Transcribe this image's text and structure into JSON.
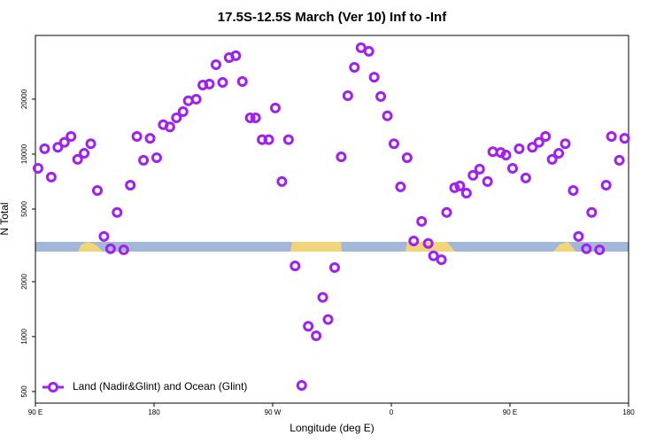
{
  "chart_data": {
    "type": "scatter",
    "title": "17.5S-12.5S March (Ver 10)   Inf to -Inf",
    "x_label": "Longitude (deg E)",
    "y_label": "N Total",
    "xlim": [
      90,
      540
    ],
    "xticks": [
      {
        "value": 90,
        "label": "90 E"
      },
      180,
      {
        "value": 270,
        "label": "90 W"
      },
      {
        "value": 360,
        "label": "0"
      },
      {
        "value": 450,
        "label": "90 E"
      },
      {
        "value": 540,
        "label": "180"
      }
    ],
    "ylim": [
      432,
      44700
    ],
    "y_scale": "log",
    "yticks": [
      500,
      1000,
      2000,
      5000,
      10000,
      20000
    ],
    "legend": "bottomleft",
    "series": [
      {
        "name": "Land (Nadir&Glint) and Ocean (Glint)",
        "color": "#a020f0",
        "x": [
          92,
          97,
          102,
          107,
          112,
          117,
          122,
          127,
          132,
          137,
          142,
          147,
          152,
          157,
          162,
          167,
          172,
          177,
          182,
          187,
          192,
          197,
          202,
          206,
          212,
          217,
          222,
          227,
          232,
          237,
          242,
          247,
          253,
          257,
          262,
          267,
          272,
          277,
          282,
          287,
          292,
          297,
          303,
          308,
          312,
          317,
          322,
          327,
          332,
          337,
          343,
          347,
          352,
          357,
          362,
          367,
          372,
          377,
          383,
          388,
          392,
          398,
          402,
          408,
          412,
          417,
          422,
          427,
          433,
          437,
          443,
          447,
          452,
          457,
          462,
          467,
          472,
          477,
          482,
          487,
          492,
          498,
          502,
          508,
          512,
          518,
          523,
          527,
          533,
          537
        ],
        "values": [
          8360,
          10700,
          7480,
          10900,
          11600,
          12500,
          9360,
          10100,
          11400,
          6320,
          3540,
          3030,
          4790,
          2990,
          6760,
          12500,
          9250,
          12200,
          9560,
          14500,
          14100,
          15800,
          17100,
          19600,
          20000,
          23900,
          24200,
          30900,
          24700,
          33800,
          34600,
          25000,
          15800,
          15800,
          12000,
          12000,
          17900,
          7080,
          12000,
          2440,
          540,
          1140,
          1010,
          1640,
          1240,
          2390,
          9670,
          20900,
          29900,
          38300,
          36600,
          26400,
          20700,
          16200,
          11400,
          6620,
          9560,
          3340,
          4280,
          3240,
          2770,
          2640,
          4790,
          6540,
          6690,
          6110,
          7650,
          8280,
          7080,
          10300,
          10200,
          9880,
          8360,
          10700,
          7400,
          10900,
          11600,
          12500,
          9360,
          10100,
          11400,
          6320,
          3540,
          3030,
          4790,
          2990,
          6760,
          12500,
          9250,
          12200
        ]
      }
    ]
  }
}
